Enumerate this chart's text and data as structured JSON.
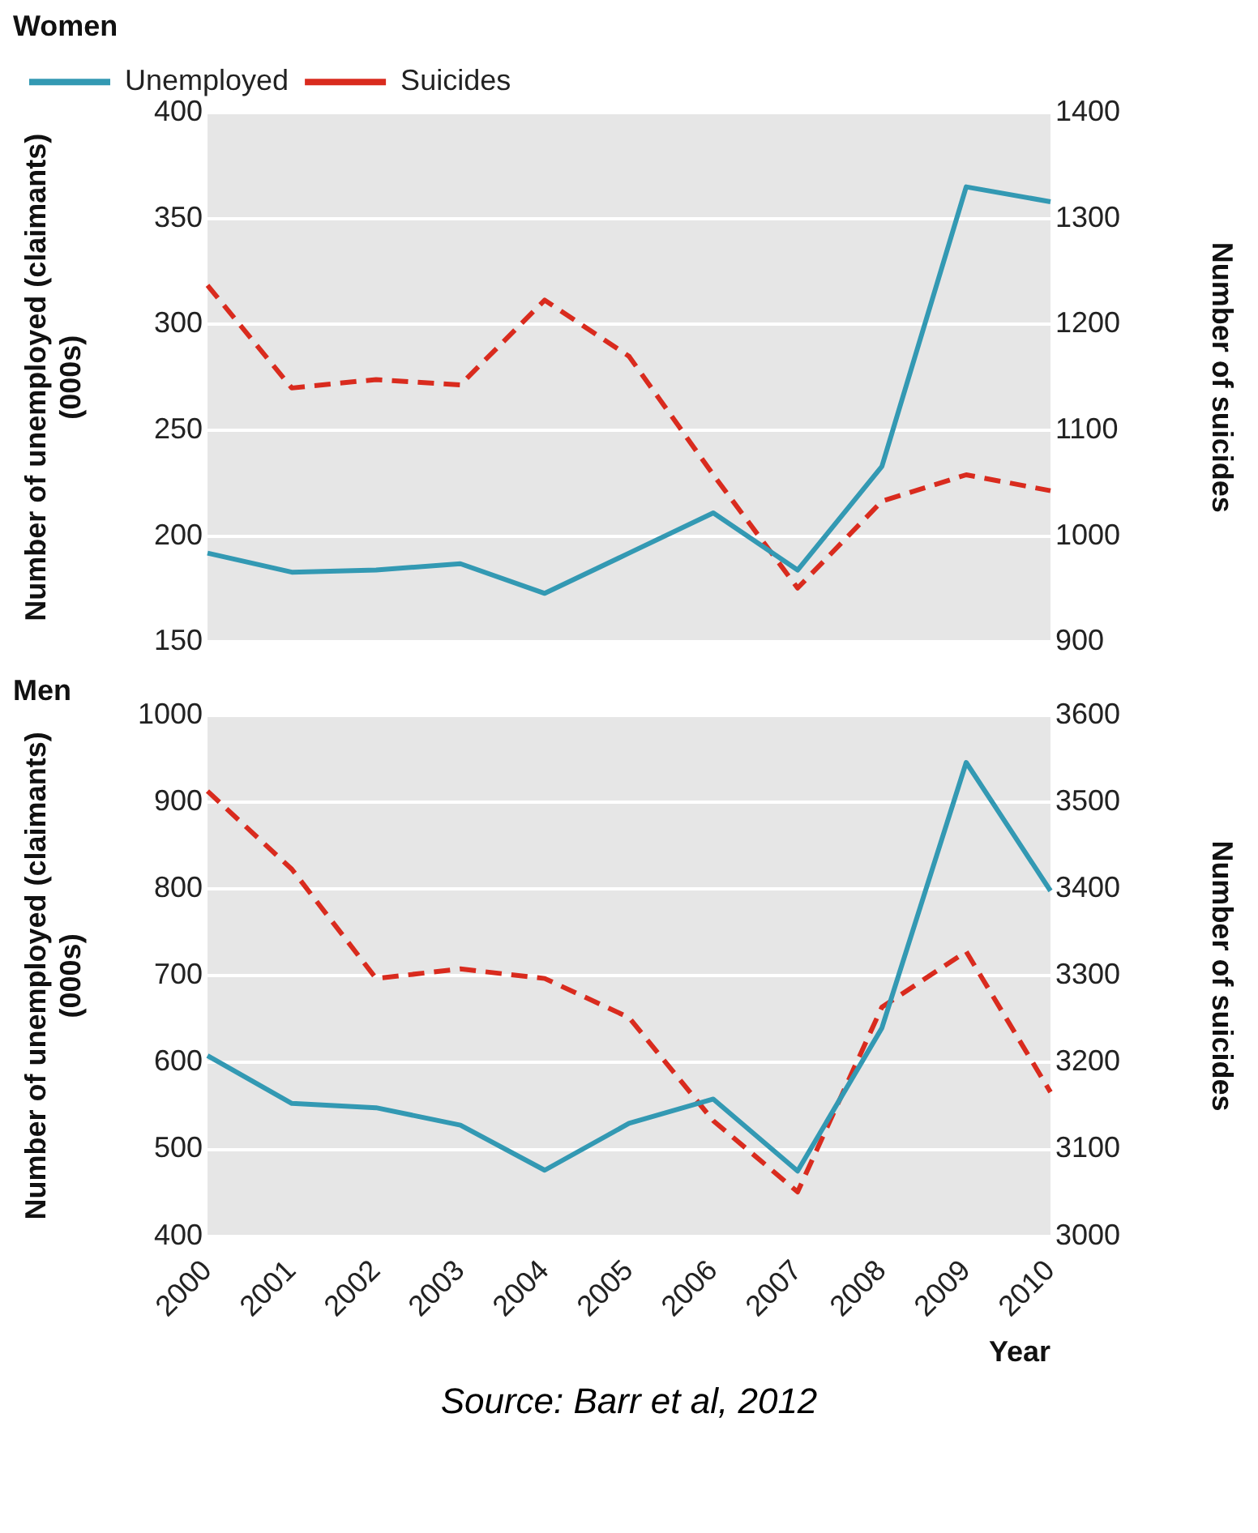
{
  "chart_data": [
    {
      "type": "line",
      "title": "Women",
      "categories": [
        "2000",
        "2001",
        "2002",
        "2003",
        "2004",
        "2005",
        "2006",
        "2007",
        "2008",
        "2009",
        "2010"
      ],
      "ylabel": "Number of unemployed (claimants) (000s)",
      "y2label": "Number of suicides",
      "ylim": [
        150,
        400
      ],
      "yticks": [
        150,
        200,
        250,
        300,
        350,
        400
      ],
      "y2lim": [
        900,
        1400
      ],
      "y2ticks": [
        900,
        1000,
        1100,
        1200,
        1300,
        1400
      ],
      "grid": "y",
      "legend": "top left",
      "tick_labels": "y",
      "marker": "none",
      "series": [
        {
          "name": "Unemployed",
          "color": "#3399b3",
          "line_style": "solid",
          "values": [
            192,
            183,
            184,
            187,
            173,
            192,
            211,
            184,
            233,
            365,
            358
          ]
        },
        {
          "name": "Suicides",
          "color": "#d92b1e",
          "line_style": "dashed",
          "axis": "y2",
          "values": [
            1237,
            1140,
            1148,
            1143,
            1223,
            1170,
            1058,
            951,
            1033,
            1058,
            1043
          ]
        }
      ]
    },
    {
      "type": "line",
      "title": "Men",
      "categories": [
        "2000",
        "2001",
        "2002",
        "2003",
        "2004",
        "2005",
        "2006",
        "2007",
        "2008",
        "2009",
        "2010"
      ],
      "xlabel": "Year",
      "ylabel": "Number of unemployed (claimants) (000s)",
      "y2label": "Number of suicides",
      "ylim": [
        400,
        1000
      ],
      "yticks": [
        400,
        500,
        600,
        700,
        800,
        900,
        1000
      ],
      "y2lim": [
        3000,
        3600
      ],
      "y2ticks": [
        3000,
        3100,
        3200,
        3300,
        3400,
        3500,
        3600
      ],
      "grid": "y",
      "marker": "none",
      "annotations": [
        "Source: Barr et al, 2012"
      ],
      "series": [
        {
          "color": "#3399b3",
          "line_style": "solid",
          "values": [
            608,
            553,
            548,
            528,
            476,
            530,
            558,
            475,
            640,
            946,
            798
          ]
        },
        {
          "color": "#d92b1e",
          "line_style": "dashed",
          "axis": "y2",
          "values": [
            3513,
            3423,
            3297,
            3308,
            3297,
            3252,
            3133,
            3051,
            3264,
            3328,
            3166
          ]
        }
      ]
    }
  ]
}
